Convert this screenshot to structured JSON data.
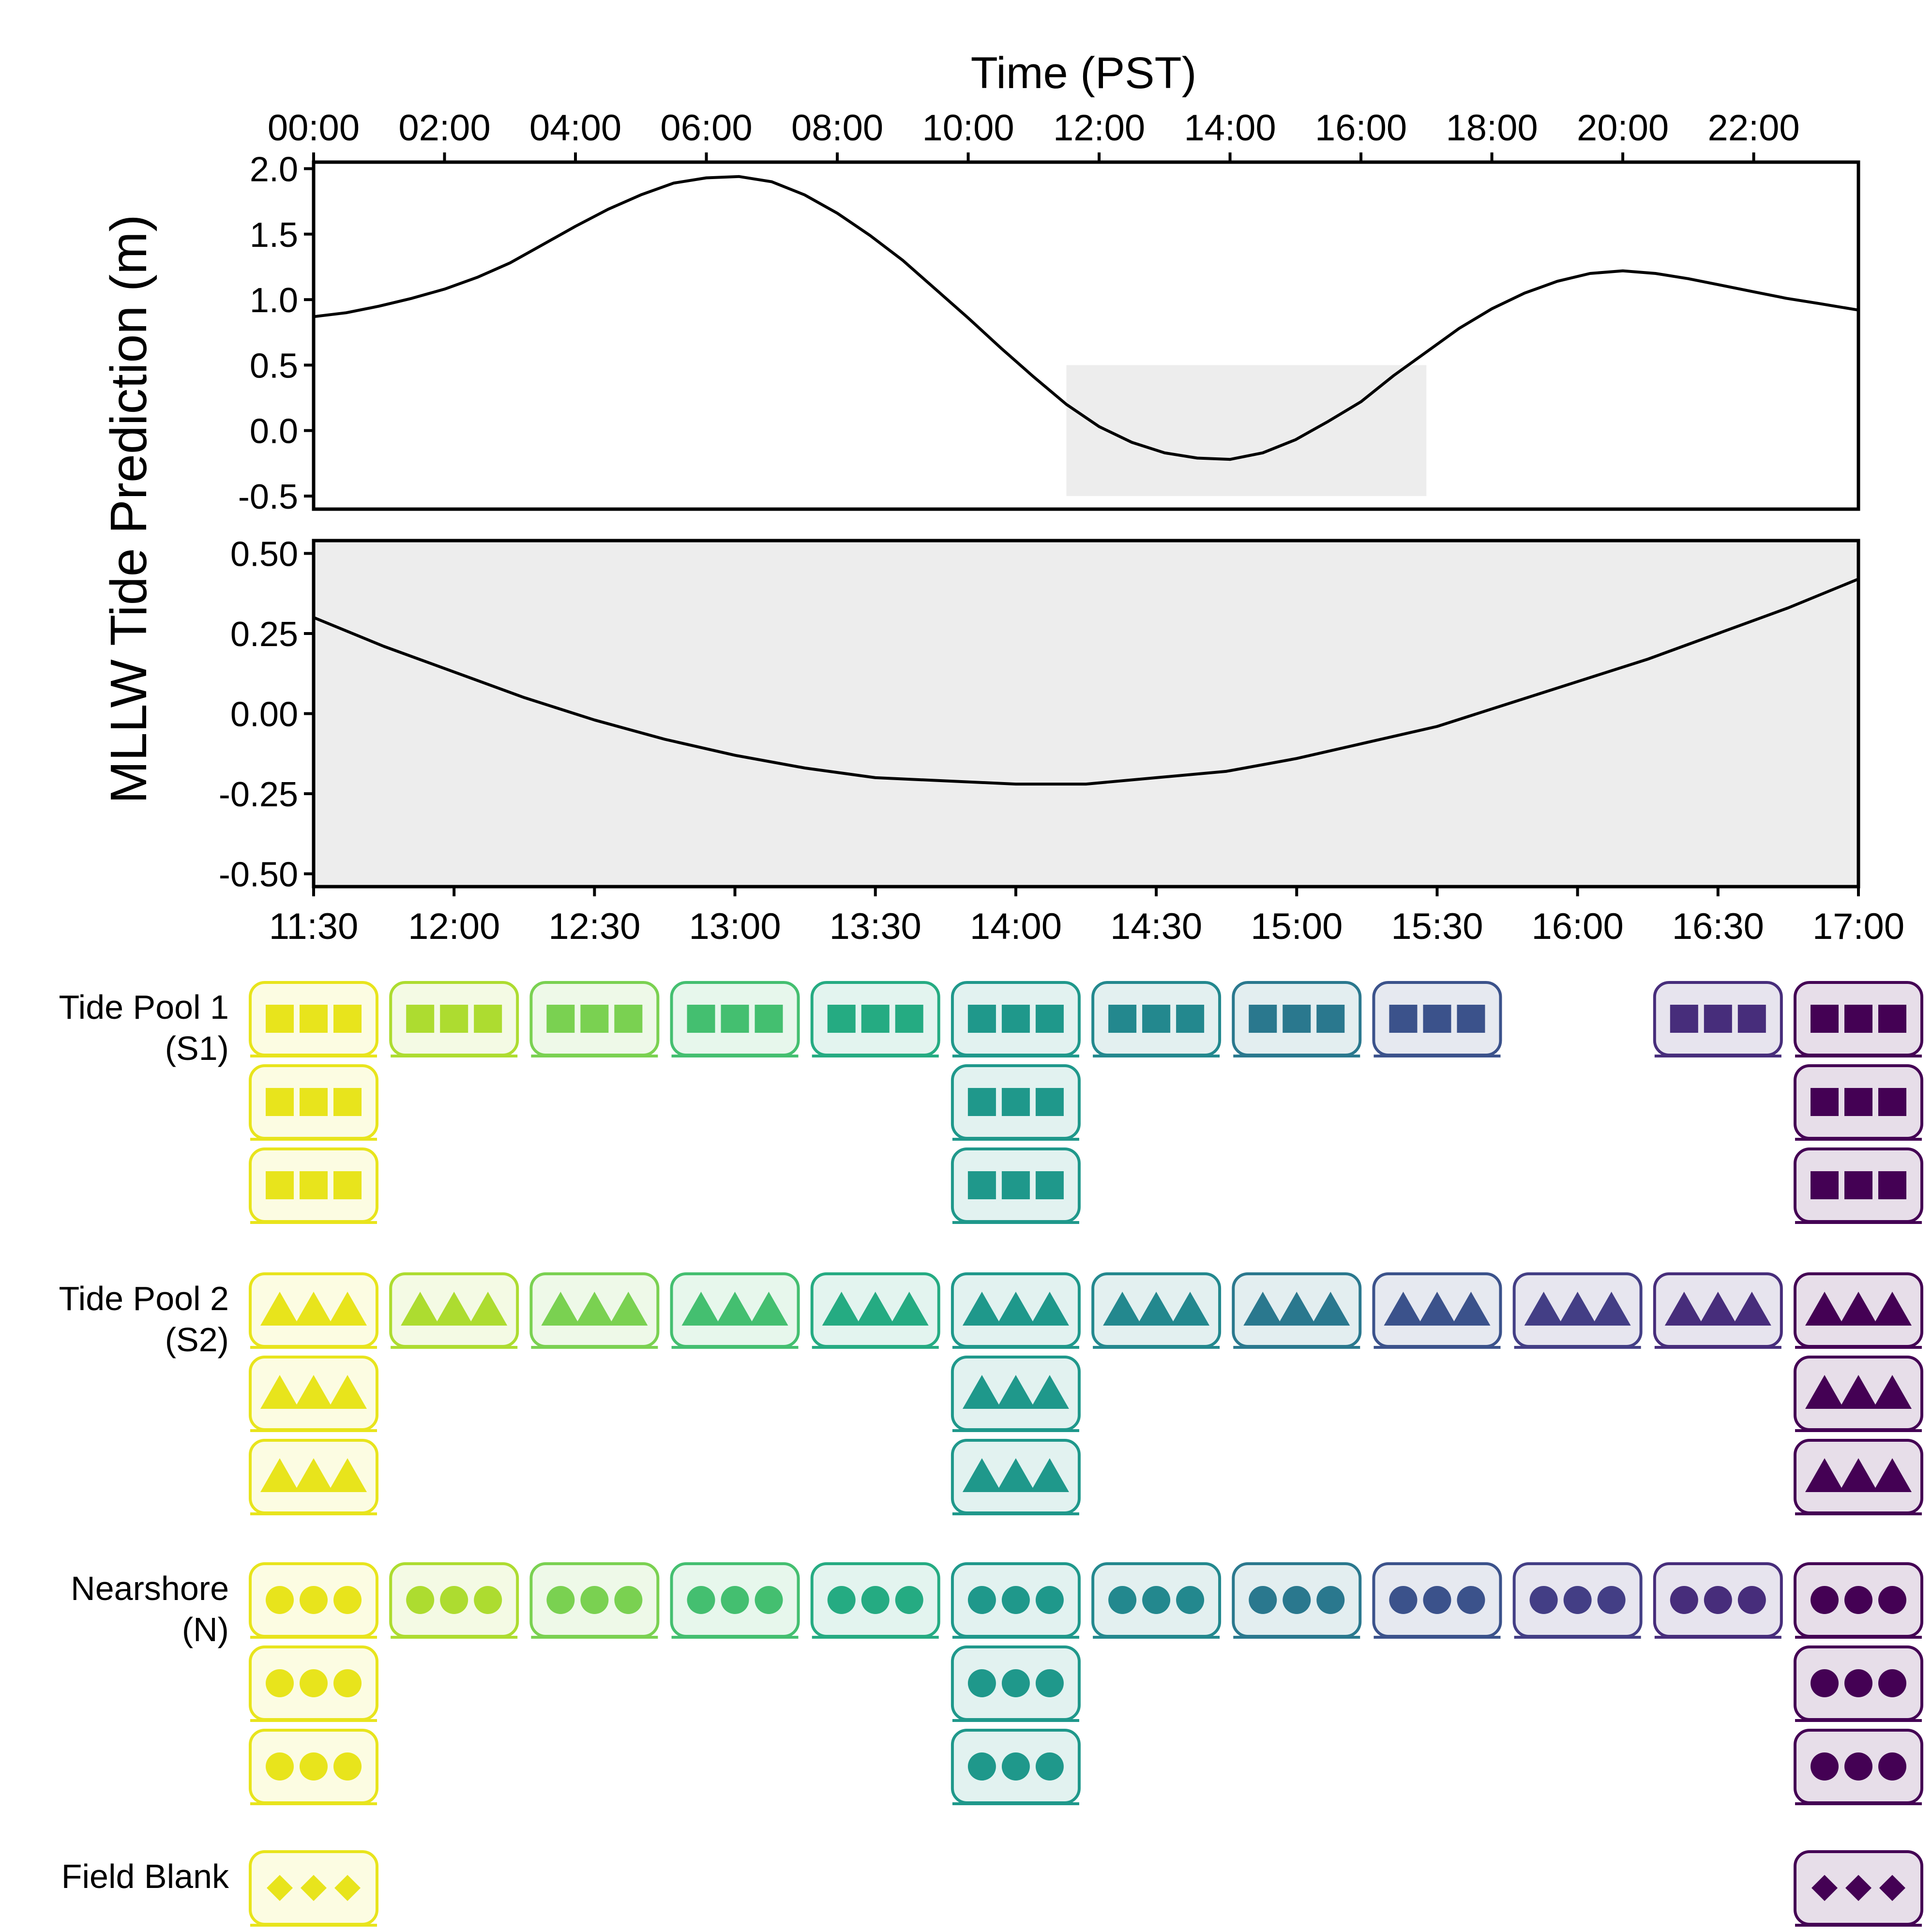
{
  "chart_data": [
    {
      "type": "line",
      "title": "",
      "xlabel_top": "Time (PST)",
      "ylabel": "MLLW Tide Prediction (m)",
      "x_tick_labels": [
        "00:00",
        "02:00",
        "04:00",
        "06:00",
        "08:00",
        "10:00",
        "12:00",
        "14:00",
        "16:00",
        "18:00",
        "20:00",
        "22:00"
      ],
      "x_tick_values": [
        0,
        2,
        4,
        6,
        8,
        10,
        12,
        14,
        16,
        18,
        20,
        22
      ],
      "xlim": [
        0,
        23.6
      ],
      "y_tick_labels": [
        "2.0",
        "1.5",
        "1.0",
        "0.5",
        "0.0",
        "-0.5"
      ],
      "y_tick_values": [
        2.0,
        1.5,
        1.0,
        0.5,
        0.0,
        -0.5
      ],
      "ylim": [
        -0.6,
        2.05
      ],
      "shaded_region": {
        "x": [
          11.5,
          17.0
        ],
        "y": [
          -0.5,
          0.5
        ],
        "color": "#ededed"
      },
      "series": [
        {
          "color": "#000000",
          "x": [
            0,
            0.5,
            1,
            1.5,
            2,
            2.5,
            3,
            3.5,
            4,
            4.5,
            5,
            5.5,
            6,
            6.5,
            7,
            7.5,
            8,
            8.5,
            9,
            9.5,
            10,
            10.5,
            11,
            11.5,
            12,
            12.5,
            13,
            13.5,
            14,
            14.5,
            15,
            15.5,
            16,
            16.5,
            17,
            17.5,
            18,
            18.5,
            19,
            19.5,
            20,
            20.5,
            21,
            21.5,
            22,
            22.5,
            23,
            23.6
          ],
          "y": [
            0.87,
            0.9,
            0.95,
            1.01,
            1.08,
            1.17,
            1.28,
            1.42,
            1.56,
            1.69,
            1.8,
            1.89,
            1.93,
            1.94,
            1.9,
            1.8,
            1.66,
            1.49,
            1.3,
            1.08,
            0.86,
            0.63,
            0.41,
            0.2,
            0.03,
            -0.09,
            -0.17,
            -0.21,
            -0.22,
            -0.17,
            -0.07,
            0.07,
            0.22,
            0.42,
            0.6,
            0.78,
            0.93,
            1.05,
            1.14,
            1.2,
            1.22,
            1.2,
            1.16,
            1.11,
            1.06,
            1.01,
            0.97,
            0.92
          ]
        }
      ]
    },
    {
      "type": "line",
      "title": "",
      "x_tick_labels": [
        "11:30",
        "12:00",
        "12:30",
        "13:00",
        "13:30",
        "14:00",
        "14:30",
        "15:00",
        "15:30",
        "16:00",
        "16:30",
        "17:00"
      ],
      "x_tick_values": [
        11.5,
        12,
        12.5,
        13,
        13.5,
        14,
        14.5,
        15,
        15.5,
        16,
        16.5,
        17
      ],
      "xlim": [
        11.5,
        17.0
      ],
      "y_tick_labels": [
        "0.50",
        "0.25",
        "0.00",
        "-0.25",
        "-0.50"
      ],
      "y_tick_values": [
        0.5,
        0.25,
        0,
        -0.25,
        -0.5
      ],
      "ylim": [
        -0.54,
        0.54
      ],
      "background": "#ededed",
      "series": [
        {
          "color": "#000000",
          "x": [
            11.5,
            11.75,
            12.0,
            12.25,
            12.5,
            12.75,
            13.0,
            13.25,
            13.5,
            13.75,
            14.0,
            14.25,
            14.5,
            14.75,
            15.0,
            15.25,
            15.5,
            15.75,
            16.0,
            16.25,
            16.5,
            16.75,
            17.0
          ],
          "y": [
            0.3,
            0.21,
            0.13,
            0.05,
            -0.02,
            -0.08,
            -0.13,
            -0.17,
            -0.2,
            -0.21,
            -0.22,
            -0.22,
            -0.2,
            -0.18,
            -0.14,
            -0.09,
            -0.04,
            0.03,
            0.1,
            0.17,
            0.25,
            0.33,
            0.42
          ]
        }
      ]
    },
    {
      "type": "table",
      "x_tick_values": [
        11.5,
        12,
        12.5,
        13,
        13.5,
        14,
        14.5,
        15,
        15.5,
        16,
        16.5,
        17
      ],
      "colors": [
        "#e8e41c",
        "#addc30",
        "#7ad151",
        "#44bf70",
        "#25ab82",
        "#1f988b",
        "#23888e",
        "#2a788e",
        "#3b528b",
        "#433e85",
        "#472d7b",
        "#440154"
      ],
      "groups": [
        {
          "label_line1": "Tide Pool 1",
          "label_line2": "(S1)",
          "marker": "square",
          "columns": [
            [
              0,
              3
            ],
            [
              1,
              1
            ],
            [
              2,
              1
            ],
            [
              3,
              1
            ],
            [
              4,
              1
            ],
            [
              5,
              3
            ],
            [
              6,
              1
            ],
            [
              7,
              1
            ],
            [
              8,
              1
            ],
            [
              10,
              1
            ],
            [
              11,
              3
            ]
          ]
        },
        {
          "label_line1": "Tide Pool 2",
          "label_line2": "(S2)",
          "marker": "triangle",
          "columns": [
            [
              0,
              3
            ],
            [
              1,
              1
            ],
            [
              2,
              1
            ],
            [
              3,
              1
            ],
            [
              4,
              1
            ],
            [
              5,
              3
            ],
            [
              6,
              1
            ],
            [
              7,
              1
            ],
            [
              8,
              1
            ],
            [
              9,
              1
            ],
            [
              10,
              1
            ],
            [
              11,
              3
            ]
          ]
        },
        {
          "label_line1": "Nearshore",
          "label_line2": "(N)",
          "marker": "circle",
          "columns": [
            [
              0,
              3
            ],
            [
              1,
              1
            ],
            [
              2,
              1
            ],
            [
              3,
              1
            ],
            [
              4,
              1
            ],
            [
              5,
              3
            ],
            [
              6,
              1
            ],
            [
              7,
              1
            ],
            [
              8,
              1
            ],
            [
              9,
              1
            ],
            [
              10,
              1
            ],
            [
              11,
              3
            ]
          ]
        },
        {
          "label_line1": "Field Blank",
          "label_line2": "",
          "marker": "diamond",
          "columns": [
            [
              0,
              1
            ],
            [
              11,
              1
            ]
          ]
        }
      ]
    }
  ]
}
